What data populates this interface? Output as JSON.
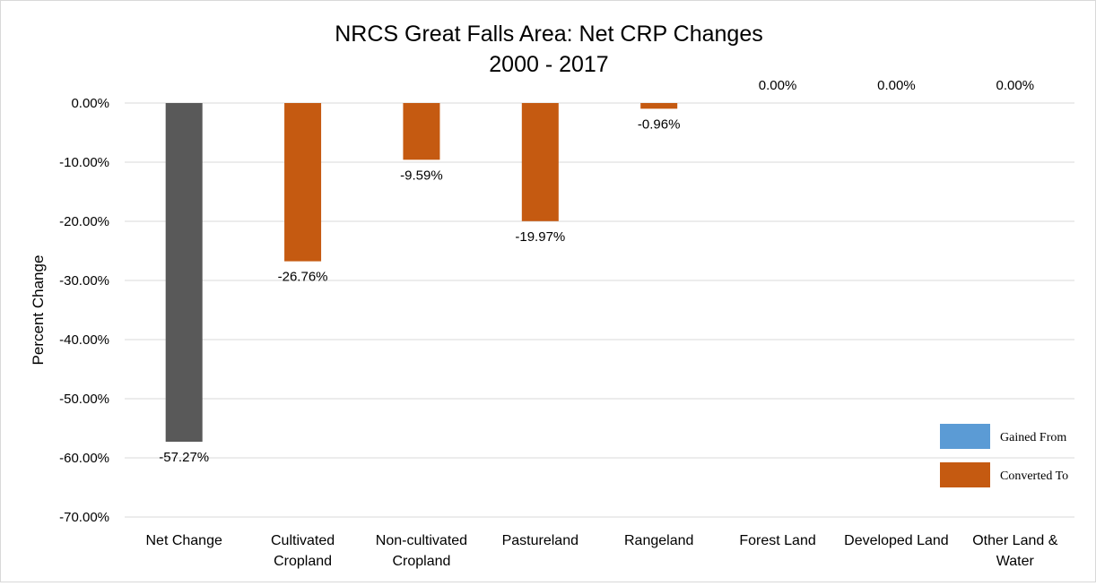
{
  "chart_data": {
    "type": "bar",
    "title": "NRCS Great Falls Area: Net CRP Changes",
    "subtitle": "2000 - 2017",
    "ylabel": "Percent Change",
    "ylim": [
      -70,
      0
    ],
    "yticks": [
      0,
      -10,
      -20,
      -30,
      -40,
      -50,
      -60,
      -70
    ],
    "ytick_labels": [
      "0.00%",
      "-10.00%",
      "-20.00%",
      "-30.00%",
      "-40.00%",
      "-50.00%",
      "-60.00%",
      "-70.00%"
    ],
    "grid": true,
    "legend_position": "bottom-right",
    "categories": [
      [
        "Net Change"
      ],
      [
        "Cultivated",
        "Cropland"
      ],
      [
        "Non-cultivated",
        "Cropland"
      ],
      [
        "Pastureland"
      ],
      [
        "Rangeland"
      ],
      [
        "Forest Land"
      ],
      [
        "Developed Land"
      ],
      [
        "Other Land &",
        "Water"
      ]
    ],
    "values": [
      -57.27,
      -26.76,
      -9.59,
      -19.97,
      -0.96,
      0.0,
      0.0,
      0.0
    ],
    "data_labels": [
      "-57.27%",
      "-26.76%",
      "-9.59%",
      "-19.97%",
      "-0.96%",
      "0.00%",
      "0.00%",
      "0.00%"
    ],
    "bar_colors": [
      "#595959",
      "#C55A11",
      "#C55A11",
      "#C55A11",
      "#C55A11",
      "#C55A11",
      "#C55A11",
      "#C55A11"
    ],
    "legend": [
      {
        "name": "Gained From",
        "color": "#5B9BD5"
      },
      {
        "name": "Converted To",
        "color": "#C55A11"
      }
    ]
  }
}
